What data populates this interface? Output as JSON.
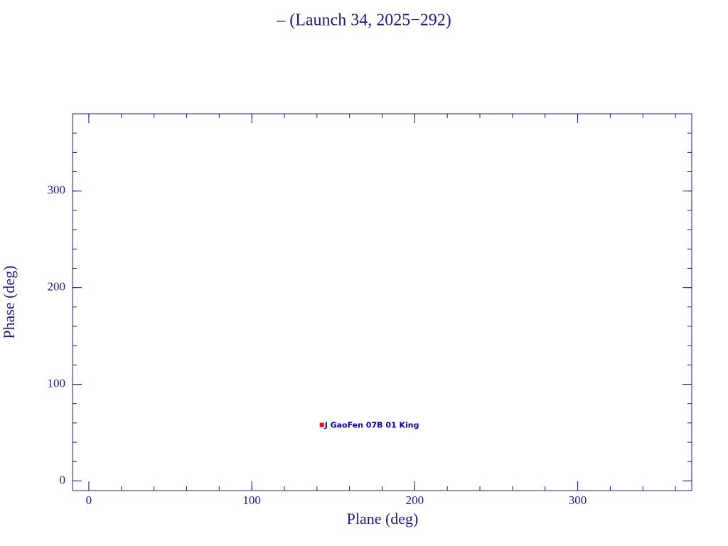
{
  "chart_data": {
    "type": "scatter",
    "title": "– (Launch 34, 2025−292)",
    "x_label": "Plane (deg)",
    "y_label": "Phase (deg)",
    "series": [
      {
        "name": "J GaoFen 07B 01 King",
        "color": "#ff0000",
        "x": [
          143
        ],
        "values": [
          58
        ]
      }
    ],
    "xlim": [
      -10,
      370
    ],
    "ylim": [
      -10,
      380
    ],
    "xticks": [
      0,
      100,
      200,
      300
    ],
    "yticks": [
      0,
      100,
      200,
      300
    ],
    "minor_tick_step": 20,
    "axis_color": "#1a1a8c",
    "label_color": "#0000cc"
  }
}
